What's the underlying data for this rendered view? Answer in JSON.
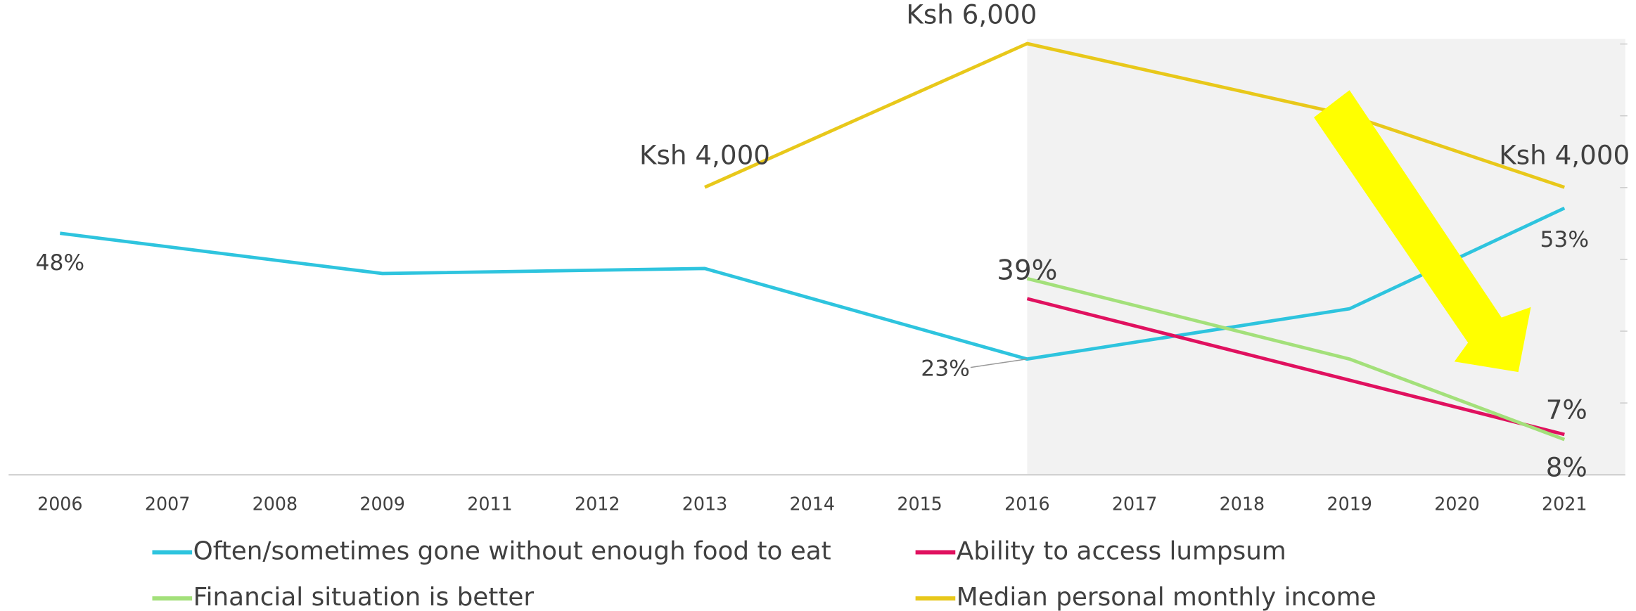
{
  "chart_data": {
    "type": "line",
    "categories": [
      "2006",
      "2007",
      "2008",
      "2009",
      "2011",
      "2012",
      "2013",
      "2014",
      "2015",
      "2016",
      "2017",
      "2018",
      "2019",
      "2020",
      "2021"
    ],
    "ylim": [
      0,
      87
    ],
    "y2lim": [
      0,
      6090
    ],
    "series": [
      {
        "name": "Often/sometimes gone without enough food to eat",
        "color": "#2ec4de",
        "values": [
          48,
          null,
          null,
          40,
          null,
          null,
          41,
          null,
          null,
          23,
          null,
          null,
          33,
          null,
          53
        ],
        "value_labels": [
          "48%",
          null,
          null,
          null,
          null,
          null,
          null,
          null,
          null,
          "23%",
          null,
          null,
          null,
          null,
          "53%"
        ]
      },
      {
        "name": "Ability to access lumpsum",
        "color": "#e0115f",
        "values": [
          null,
          null,
          null,
          null,
          null,
          null,
          null,
          null,
          null,
          35,
          null,
          null,
          null,
          null,
          8
        ],
        "value_labels": [
          null,
          null,
          null,
          null,
          null,
          null,
          null,
          null,
          null,
          null,
          null,
          null,
          null,
          null,
          "8%"
        ]
      },
      {
        "name": "Financial situation is better",
        "color": "#a3e07a",
        "values": [
          null,
          null,
          null,
          null,
          null,
          null,
          null,
          null,
          null,
          39,
          null,
          null,
          23,
          null,
          7
        ],
        "value_labels": [
          null,
          null,
          null,
          null,
          null,
          null,
          null,
          null,
          null,
          "39%",
          null,
          null,
          null,
          null,
          "7%"
        ]
      },
      {
        "name": "Median personal monthly income",
        "color": "#e8c81a",
        "axis": "y2",
        "values": [
          null,
          null,
          null,
          null,
          null,
          null,
          4000,
          null,
          null,
          6000,
          null,
          null,
          5000,
          null,
          4000
        ],
        "value_labels": [
          null,
          null,
          null,
          null,
          null,
          null,
          "Ksh 4,000",
          null,
          null,
          "Ksh 6,000",
          null,
          null,
          null,
          null,
          "Ksh 4,000"
        ]
      }
    ]
  }
}
